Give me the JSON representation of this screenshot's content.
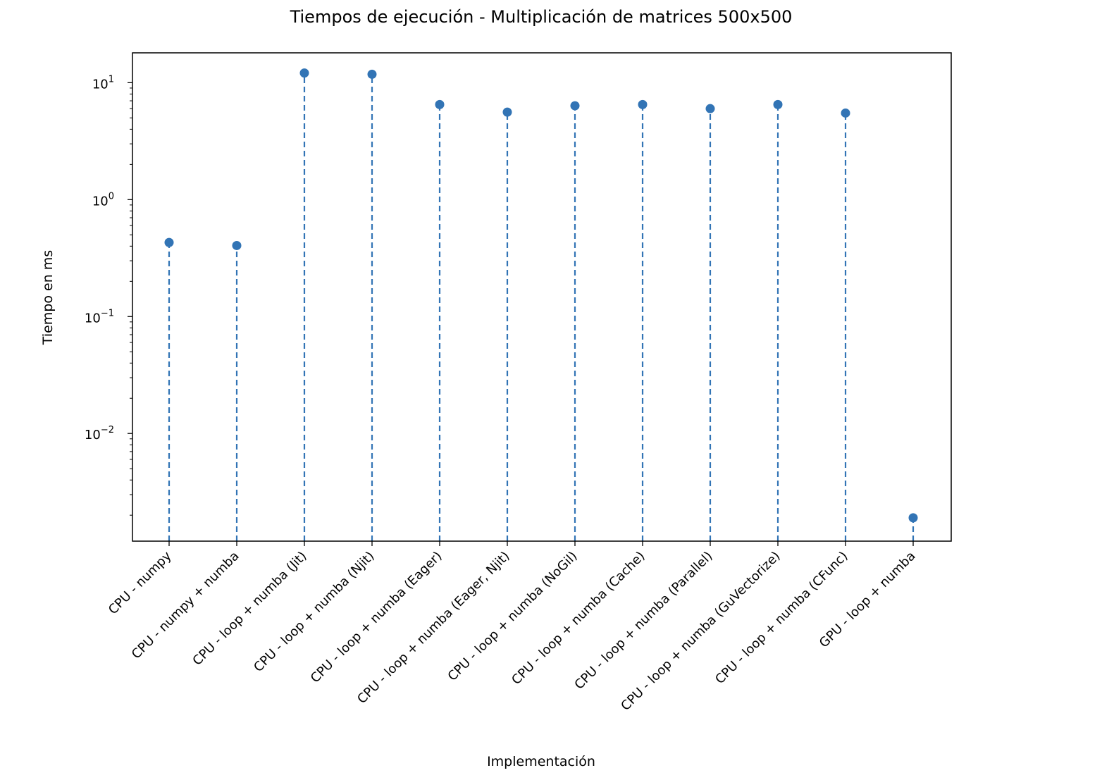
{
  "chart_data": {
    "type": "stem",
    "title": "Tiempos de ejecución - Multiplicación de matrices 500x500",
    "xlabel": "Implementación",
    "ylabel": "Tiempo en ms",
    "yscale": "log",
    "ylim": [
      0.0012,
      18
    ],
    "yticks": [
      {
        "value": 10,
        "base": "10",
        "exp": "1"
      },
      {
        "value": 1,
        "base": "10",
        "exp": "0"
      },
      {
        "value": 0.1,
        "base": "10",
        "exp": "−1"
      },
      {
        "value": 0.01,
        "base": "10",
        "exp": "−2"
      }
    ],
    "categories": [
      "CPU - numpy",
      "CPU - numpy + numba",
      "CPU - loop + numba (Jit)",
      "CPU - loop + numba (Njit)",
      "CPU - loop + numba (Eager)",
      "CPU - loop + numba (Eager, Njit)",
      "CPU - loop + numba (NoGil)",
      "CPU - loop + numba (Cache)",
      "CPU - loop + numba (Parallel)",
      "CPU - loop + numba (GuVectorize)",
      "CPU - loop + numba (CFunc)",
      "GPU - loop + numba"
    ],
    "values": [
      0.43,
      0.405,
      12.1,
      11.8,
      6.5,
      5.6,
      6.35,
      6.5,
      6.0,
      6.5,
      5.5,
      0.0019
    ],
    "color": "#3274b5",
    "grid": false
  }
}
